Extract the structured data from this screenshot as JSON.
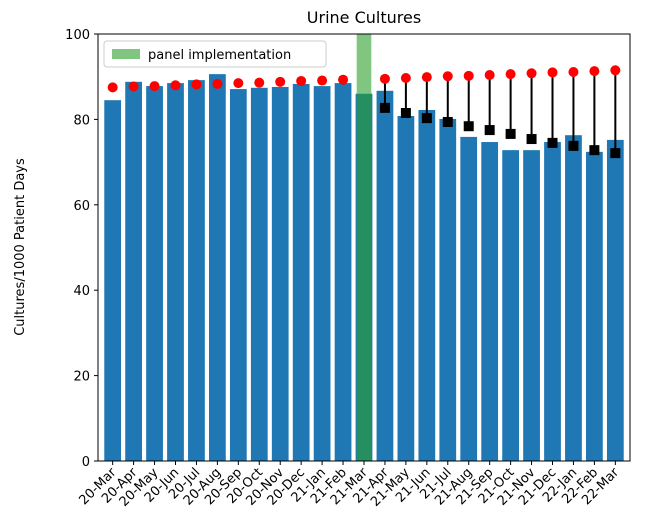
{
  "chart_data": {
    "type": "bar",
    "title": "Urine Cultures",
    "ylabel": "Cultures/1000 Patient Days",
    "categories": [
      "20-Mar",
      "20-Apr",
      "20-May",
      "20-Jun",
      "20-Jul",
      "20-Aug",
      "20-Sep",
      "20-Oct",
      "20-Nov",
      "20-Dec",
      "21-Jan",
      "21-Feb",
      "21-Mar",
      "21-Apr",
      "21-May",
      "21-Jun",
      "21-Jul",
      "21-Aug",
      "21-Sep",
      "21-Oct",
      "21-Nov",
      "21-Dec",
      "22-Jan",
      "22-Feb",
      "22-Mar"
    ],
    "values": [
      84.5,
      88.8,
      87.8,
      88.5,
      89.2,
      90.6,
      87.1,
      87.4,
      87.6,
      88.3,
      87.8,
      88.5,
      86.0,
      86.7,
      80.8,
      82.2,
      80.1,
      75.9,
      74.7,
      72.8,
      72.8,
      74.7,
      76.3,
      72.4,
      75.2
    ],
    "color": "#1f77b4",
    "series": [
      {
        "color": "#ff0000",
        "marker": "circle",
        "values": [
          87.5,
          87.7,
          87.8,
          88.0,
          88.2,
          88.3,
          88.5,
          88.6,
          88.8,
          89.0,
          89.1,
          89.3,
          null,
          89.5,
          89.7,
          89.9,
          90.1,
          90.2,
          90.4,
          90.6,
          90.8,
          91.0,
          91.1,
          91.3,
          91.5
        ]
      },
      {
        "color": "#000000",
        "marker": "square",
        "values": [
          null,
          null,
          null,
          null,
          null,
          null,
          null,
          null,
          null,
          null,
          null,
          null,
          null,
          82.7,
          81.5,
          80.3,
          79.4,
          78.4,
          77.5,
          76.6,
          75.4,
          74.5,
          73.8,
          72.8,
          72.1
        ]
      }
    ],
    "span": {
      "label": "panel implementation",
      "category": "21-Mar",
      "color": "#2ca02c"
    },
    "legend": "upper left",
    "ylim": [
      0,
      100
    ],
    "yticks": [
      0,
      20,
      40,
      60,
      80,
      100
    ]
  }
}
